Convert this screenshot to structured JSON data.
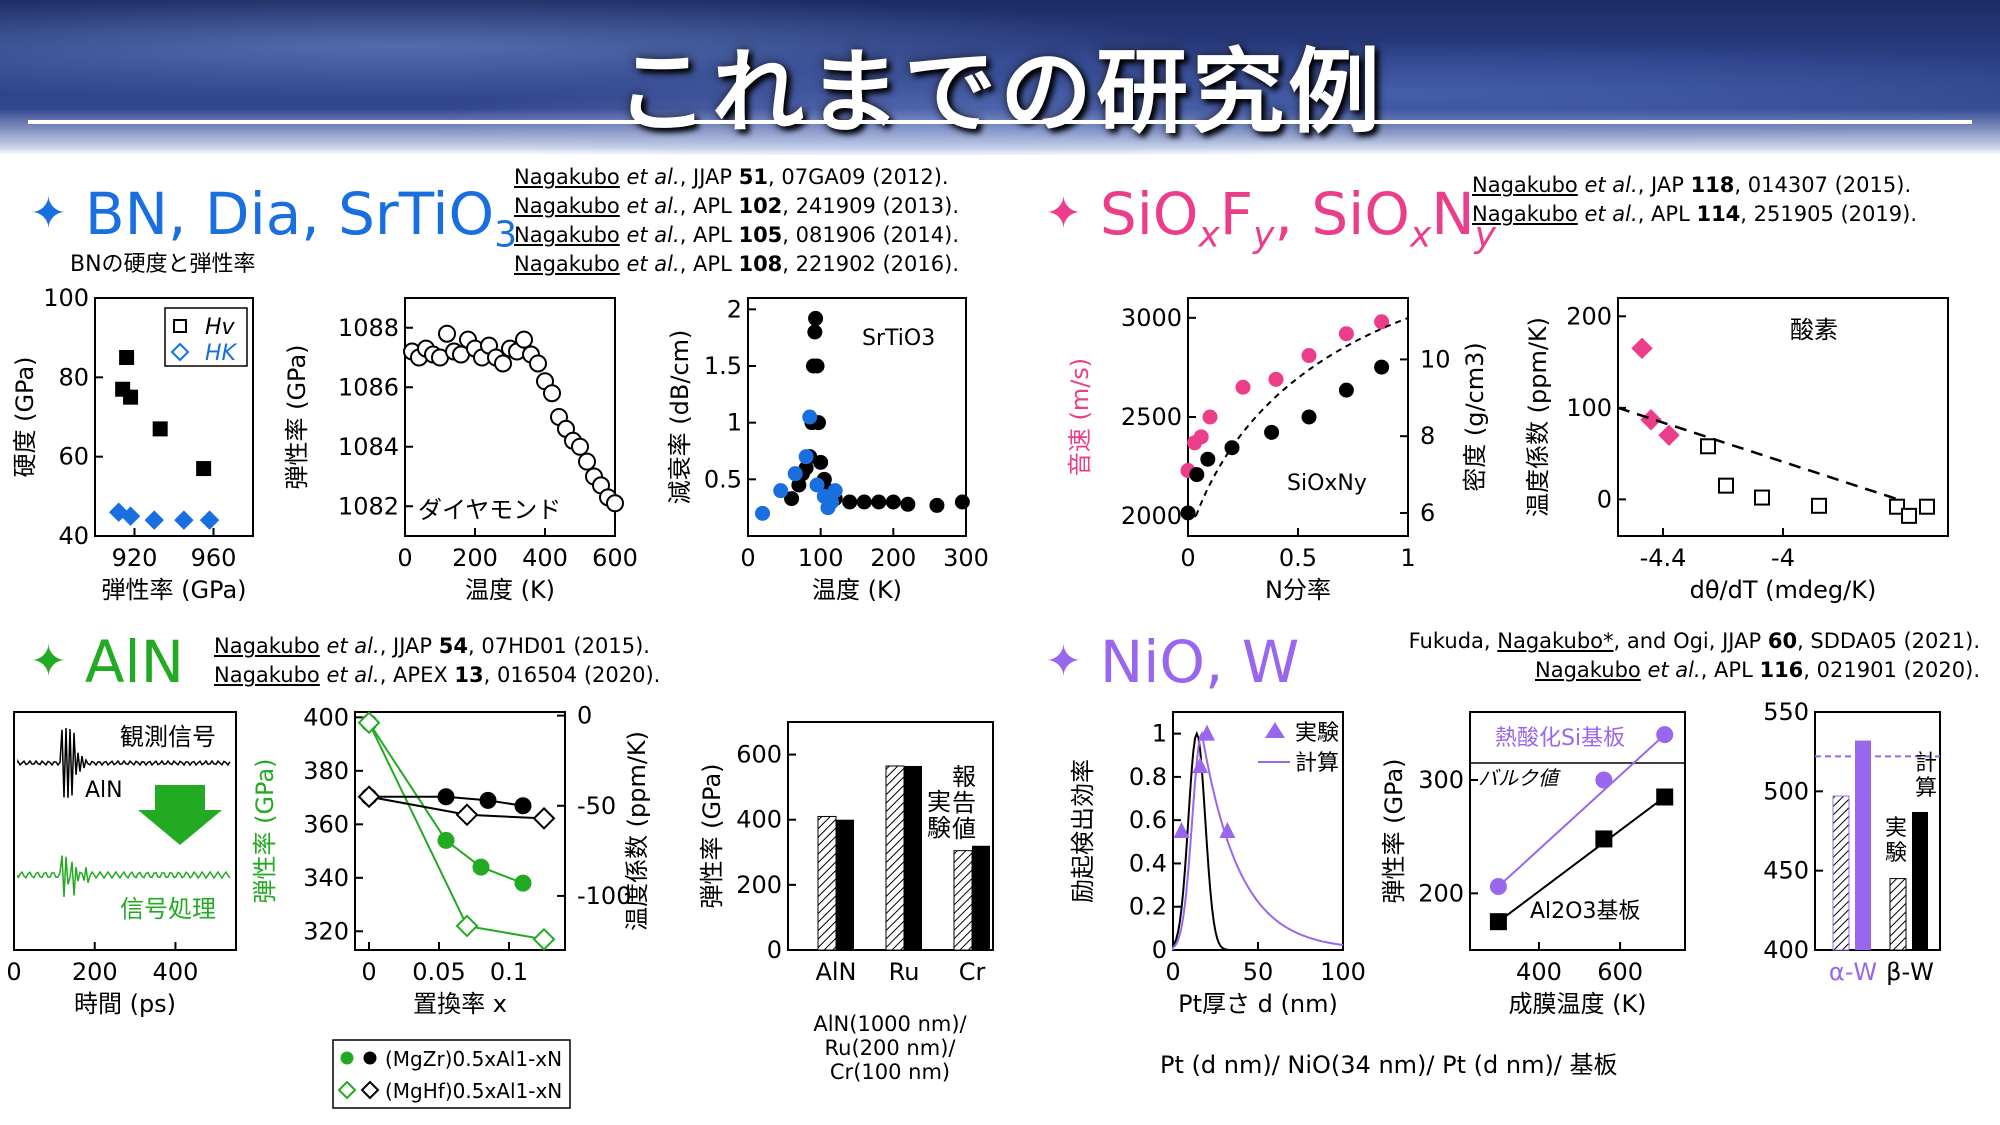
{
  "page": {
    "title": "これまでの研究例"
  },
  "sections": {
    "bn": {
      "heading": "BN, Dia, SrTiO",
      "heading_sub": "3",
      "color": "#1a6fe0",
      "refs": [
        {
          "author": "Nagakubo",
          "rest_pre": " et al., JJAP ",
          "vol": "51",
          "rest_post": ", 07GA09 (2012)."
        },
        {
          "author": "Nagakubo",
          "rest_pre": " et al., APL ",
          "vol": "102",
          "rest_post": ", 241909 (2013)."
        },
        {
          "author": "Nagakubo",
          "rest_pre": " et al., APL ",
          "vol": "105",
          "rest_post": ", 081906 (2014)."
        },
        {
          "author": "Nagakubo",
          "rest_pre": " et al., APL ",
          "vol": "108",
          "rest_post": ", 221902 (2016)."
        }
      ],
      "sublabel": "BNの硬度と弾性率"
    },
    "siof": {
      "heading": "SiOxFy, SiOxNy",
      "color": "#ec3d8a",
      "refs": [
        {
          "author": "Nagakubo",
          "rest_pre": " et al., JAP ",
          "vol": "118",
          "rest_post": ", 014307 (2015)."
        },
        {
          "author": "Nagakubo",
          "rest_pre": " et al., APL ",
          "vol": "114",
          "rest_post": ", 251905 (2019)."
        }
      ]
    },
    "aln": {
      "heading": "AlN",
      "color": "#22aa22",
      "refs": [
        {
          "author": "Nagakubo",
          "rest_pre": " et al., JJAP ",
          "vol": "54",
          "rest_post": ", 07HD01 (2015)."
        },
        {
          "author": "Nagakubo",
          "rest_pre": " et al., APEX ",
          "vol": "13",
          "rest_post": ", 016504 (2020)."
        }
      ],
      "sample_caption": [
        "AlN(1000 nm)/",
        "Ru(200 nm)/",
        "Cr(100 nm)"
      ]
    },
    "nio": {
      "heading": "NiO, W",
      "color": "#9966ee",
      "refs": [
        {
          "pre": "Fukuda, ",
          "author": "Nagakubo*",
          "rest_pre": ", and Ogi, JJAP ",
          "vol": "60",
          "rest_post": ", SDDA05 (2021)."
        },
        {
          "author": "Nagakubo",
          "rest_pre": " et al., APL ",
          "vol": "116",
          "rest_post": ", 021901 (2020)."
        }
      ],
      "sample_caption": "Pt (d nm)/ NiO(34 nm)/ Pt (d nm)/ 基板"
    }
  },
  "chart_data": [
    {
      "id": "bn-hardness",
      "type": "scatter",
      "xlabel": "弾性率 (GPa)",
      "ylabel": "硬度 (GPa)",
      "xlim": [
        900,
        980
      ],
      "ylim": [
        40,
        100
      ],
      "xticks": [
        920,
        960
      ],
      "yticks": [
        40,
        60,
        80,
        100
      ],
      "legend": [
        "Hv",
        "HK"
      ],
      "series": [
        {
          "name": "Hv",
          "marker": "square",
          "color": "#000",
          "points": [
            [
              914,
              77
            ],
            [
              916,
              85
            ],
            [
              918,
              75
            ],
            [
              933,
              67
            ],
            [
              955,
              57
            ]
          ]
        },
        {
          "name": "HK",
          "marker": "diamond",
          "color": "#1a6fe0",
          "points": [
            [
              912,
              46
            ],
            [
              918,
              45
            ],
            [
              930,
              44
            ],
            [
              945,
              44
            ],
            [
              958,
              44
            ]
          ]
        }
      ]
    },
    {
      "id": "diamond-modulus",
      "type": "scatter",
      "xlabel": "温度 (K)",
      "ylabel": "弾性率 (GPa)",
      "annotation": "ダイヤモンド",
      "xlim": [
        0,
        600
      ],
      "ylim": [
        1081,
        1089
      ],
      "xticks": [
        0,
        200,
        400,
        600
      ],
      "yticks": [
        1082,
        1084,
        1086,
        1088
      ],
      "series": [
        {
          "name": "",
          "marker": "circle-open",
          "color": "#000",
          "points": [
            [
              20,
              1087.2
            ],
            [
              40,
              1087.0
            ],
            [
              60,
              1087.3
            ],
            [
              80,
              1087.1
            ],
            [
              100,
              1087.0
            ],
            [
              120,
              1087.8
            ],
            [
              140,
              1087.2
            ],
            [
              160,
              1087.1
            ],
            [
              180,
              1087.6
            ],
            [
              200,
              1087.3
            ],
            [
              220,
              1087.0
            ],
            [
              240,
              1087.4
            ],
            [
              260,
              1087.0
            ],
            [
              280,
              1086.8
            ],
            [
              300,
              1087.3
            ],
            [
              320,
              1087.2
            ],
            [
              340,
              1087.6
            ],
            [
              360,
              1087.1
            ],
            [
              380,
              1086.8
            ],
            [
              400,
              1086.2
            ],
            [
              420,
              1085.8
            ],
            [
              440,
              1085.0
            ],
            [
              460,
              1084.6
            ],
            [
              480,
              1084.2
            ],
            [
              500,
              1084.0
            ],
            [
              520,
              1083.5
            ],
            [
              540,
              1083.0
            ],
            [
              560,
              1082.7
            ],
            [
              580,
              1082.3
            ],
            [
              600,
              1082.1
            ]
          ]
        }
      ]
    },
    {
      "id": "srtio3-attenuation",
      "type": "scatter",
      "xlabel": "温度 (K)",
      "ylabel": "減衰率 (dB/cm)",
      "annotation": "SrTiO3",
      "xlim": [
        0,
        300
      ],
      "ylim": [
        0,
        2.1
      ],
      "xticks": [
        0,
        100,
        200,
        300
      ],
      "yticks": [
        0.5,
        1,
        1.5,
        2
      ],
      "series": [
        {
          "name": "black",
          "marker": "circle",
          "color": "#000",
          "points": [
            [
              60,
              0.33
            ],
            [
              70,
              0.45
            ],
            [
              75,
              0.55
            ],
            [
              80,
              0.6
            ],
            [
              85,
              0.7
            ],
            [
              88,
              1.0
            ],
            [
              90,
              1.5
            ],
            [
              92,
              1.8
            ],
            [
              93,
              1.92
            ],
            [
              95,
              1.5
            ],
            [
              97,
              1.0
            ],
            [
              100,
              0.65
            ],
            [
              105,
              0.5
            ],
            [
              110,
              0.4
            ],
            [
              120,
              0.33
            ],
            [
              140,
              0.3
            ],
            [
              160,
              0.3
            ],
            [
              180,
              0.3
            ],
            [
              200,
              0.3
            ],
            [
              220,
              0.28
            ],
            [
              260,
              0.27
            ],
            [
              295,
              0.3
            ]
          ]
        },
        {
          "name": "blue",
          "marker": "circle",
          "color": "#1a6fe0",
          "points": [
            [
              20,
              0.2
            ],
            [
              45,
              0.4
            ],
            [
              65,
              0.55
            ],
            [
              80,
              0.7
            ],
            [
              85,
              1.05
            ],
            [
              95,
              0.45
            ],
            [
              105,
              0.35
            ],
            [
              110,
              0.25
            ],
            [
              115,
              0.3
            ],
            [
              120,
              0.4
            ]
          ]
        }
      ]
    },
    {
      "id": "sioxny",
      "type": "scatter",
      "xlabel": "N分率",
      "ylabel": "音速 (m/s)",
      "ylabel2": "密度 (g/cm3)",
      "annotation": "SiOxNy",
      "xlim": [
        0,
        1
      ],
      "ylim": [
        1900,
        3100
      ],
      "ylim2": [
        5.4,
        11.6
      ],
      "xticks": [
        0,
        0.5,
        1
      ],
      "yticks": [
        2000,
        2500,
        3000
      ],
      "yticks2": [
        6,
        8,
        10
      ],
      "series": [
        {
          "name": "音速",
          "marker": "circle",
          "color": "#ec3d8a",
          "points": [
            [
              0,
              2230
            ],
            [
              0.03,
              2370
            ],
            [
              0.06,
              2400
            ],
            [
              0.1,
              2500
            ],
            [
              0.25,
              2650
            ],
            [
              0.4,
              2690
            ],
            [
              0.55,
              2810
            ],
            [
              0.72,
              2920
            ],
            [
              0.88,
              2980
            ]
          ]
        },
        {
          "name": "密度",
          "marker": "circle",
          "color": "#000",
          "axis": "right",
          "points": [
            [
              0,
              6.0
            ],
            [
              0.04,
              7.0
            ],
            [
              0.09,
              7.4
            ],
            [
              0.2,
              7.7
            ],
            [
              0.38,
              8.1
            ],
            [
              0.55,
              8.5
            ],
            [
              0.72,
              9.2
            ],
            [
              0.88,
              9.8
            ]
          ]
        }
      ]
    },
    {
      "id": "siof-tcf",
      "type": "scatter",
      "xlabel": "dθ/dT (mdeg/K)",
      "ylabel": "温度係数 (ppm/K)",
      "annotation": "酸素",
      "xlim": [
        -4.55,
        -3.45
      ],
      "ylim": [
        -40,
        220
      ],
      "xticks": [
        -4.4,
        -4
      ],
      "yticks": [
        0,
        100,
        200
      ],
      "series": [
        {
          "name": "pink",
          "marker": "diamond",
          "color": "#ec3d8a",
          "points": [
            [
              -4.47,
              165
            ],
            [
              -4.44,
              87
            ],
            [
              -4.38,
              70
            ]
          ]
        },
        {
          "name": "open",
          "marker": "square-open",
          "color": "#000",
          "points": [
            [
              -4.25,
              58
            ],
            [
              -4.19,
              15
            ],
            [
              -4.07,
              2
            ],
            [
              -3.88,
              -7
            ],
            [
              -3.62,
              -8
            ],
            [
              -3.58,
              -18
            ],
            [
              -3.52,
              -8
            ]
          ]
        }
      ]
    },
    {
      "id": "aln-waveform",
      "type": "line",
      "xlabel": "時間 (ps)",
      "annotations": [
        "観測信号",
        "AlN",
        "信号処理"
      ],
      "xlim": [
        0,
        550
      ],
      "xticks": [
        0,
        200,
        400
      ]
    },
    {
      "id": "aln-substitution",
      "type": "scatter",
      "xlabel": "置換率 x",
      "ylabel": "弾性率 (GPa)",
      "ylabel2": "温度係数 (ppm/K)",
      "xlim": [
        -0.01,
        0.14
      ],
      "ylim": [
        313,
        402
      ],
      "ylim2": [
        -130,
        2
      ],
      "xticks": [
        0,
        0.05,
        0.1
      ],
      "yticks": [
        320,
        340,
        360,
        380,
        400
      ],
      "yticks2": [
        0,
        -50,
        -100
      ],
      "legend": [
        "(MgZr)0.5xAl1-xN",
        "(MgHf)0.5xAl1-xN"
      ],
      "series": [
        {
          "name": "MgZr elastic",
          "marker": "circle",
          "color": "#22aa22",
          "points": [
            [
              0,
              398
            ],
            [
              0.055,
              354
            ],
            [
              0.08,
              344
            ],
            [
              0.11,
              338
            ]
          ]
        },
        {
          "name": "MgHf elastic",
          "marker": "diamond-open",
          "color": "#22aa22",
          "points": [
            [
              0,
              398
            ],
            [
              0.07,
              322
            ],
            [
              0.125,
              317
            ]
          ]
        },
        {
          "name": "MgZr TCF",
          "marker": "circle",
          "color": "#000",
          "axis": "right",
          "points": [
            [
              0,
              -45
            ],
            [
              0.055,
              -45
            ],
            [
              0.085,
              -47
            ],
            [
              0.11,
              -50
            ]
          ]
        },
        {
          "name": "MgHf TCF",
          "marker": "diamond-open",
          "color": "#000",
          "axis": "right",
          "points": [
            [
              0,
              -45
            ],
            [
              0.07,
              -55
            ],
            [
              0.125,
              -57
            ]
          ]
        }
      ]
    },
    {
      "id": "aln-ru-cr-bars",
      "type": "bar",
      "ylabel": "弾性率 (GPa)",
      "categories": [
        "AlN",
        "Ru",
        "Cr"
      ],
      "ylim": [
        0,
        700
      ],
      "yticks": [
        0,
        200,
        400,
        600
      ],
      "series": [
        {
          "name": "実験",
          "values": [
            410,
            565,
            305
          ]
        },
        {
          "name": "報告値",
          "values": [
            400,
            565,
            320
          ]
        }
      ]
    },
    {
      "id": "nio-efficiency",
      "type": "line",
      "xlabel": "Pt厚さ d (nm)",
      "ylabel": "励起検出効率",
      "xlim": [
        0,
        100
      ],
      "ylim": [
        0,
        1.1
      ],
      "xticks": [
        0,
        50,
        100
      ],
      "yticks": [
        0,
        0.2,
        0.4,
        0.6,
        0.8,
        1
      ],
      "legend": [
        "実験",
        "計算"
      ],
      "series": [
        {
          "name": "実験",
          "marker": "triangle",
          "color": "#9966ee",
          "points": [
            [
              5,
              0.55
            ],
            [
              16,
              0.85
            ],
            [
              20,
              1.0
            ],
            [
              32,
              0.55
            ]
          ]
        }
      ]
    },
    {
      "id": "nio-modulus",
      "type": "scatter",
      "xlabel": "成膜温度 (K)",
      "ylabel": "弾性率 (GPa)",
      "annotations": [
        "熱酸化Si基板",
        "バルク値",
        "Al2O3基板"
      ],
      "xlim": [
        230,
        760
      ],
      "ylim": [
        150,
        360
      ],
      "xticks": [
        400,
        600
      ],
      "yticks": [
        200,
        300
      ],
      "series": [
        {
          "name": "熱酸化Si基板",
          "marker": "circle",
          "color": "#9966ee",
          "points": [
            [
              300,
              206
            ],
            [
              560,
              300
            ],
            [
              710,
              340
            ]
          ]
        },
        {
          "name": "Al2O3基板",
          "marker": "square",
          "color": "#000",
          "points": [
            [
              300,
              175
            ],
            [
              560,
              248
            ],
            [
              710,
              285
            ]
          ]
        }
      ]
    },
    {
      "id": "w-bars",
      "type": "bar",
      "categories": [
        "α-W",
        "β-W"
      ],
      "ylim": [
        400,
        550
      ],
      "yticks": [
        400,
        450,
        500,
        550
      ],
      "annotations": [
        "実験",
        "計算"
      ],
      "series": [
        {
          "name": "実験",
          "values": [
            497,
            445
          ]
        },
        {
          "name": "計算",
          "values": [
            532,
            487
          ]
        }
      ]
    }
  ]
}
